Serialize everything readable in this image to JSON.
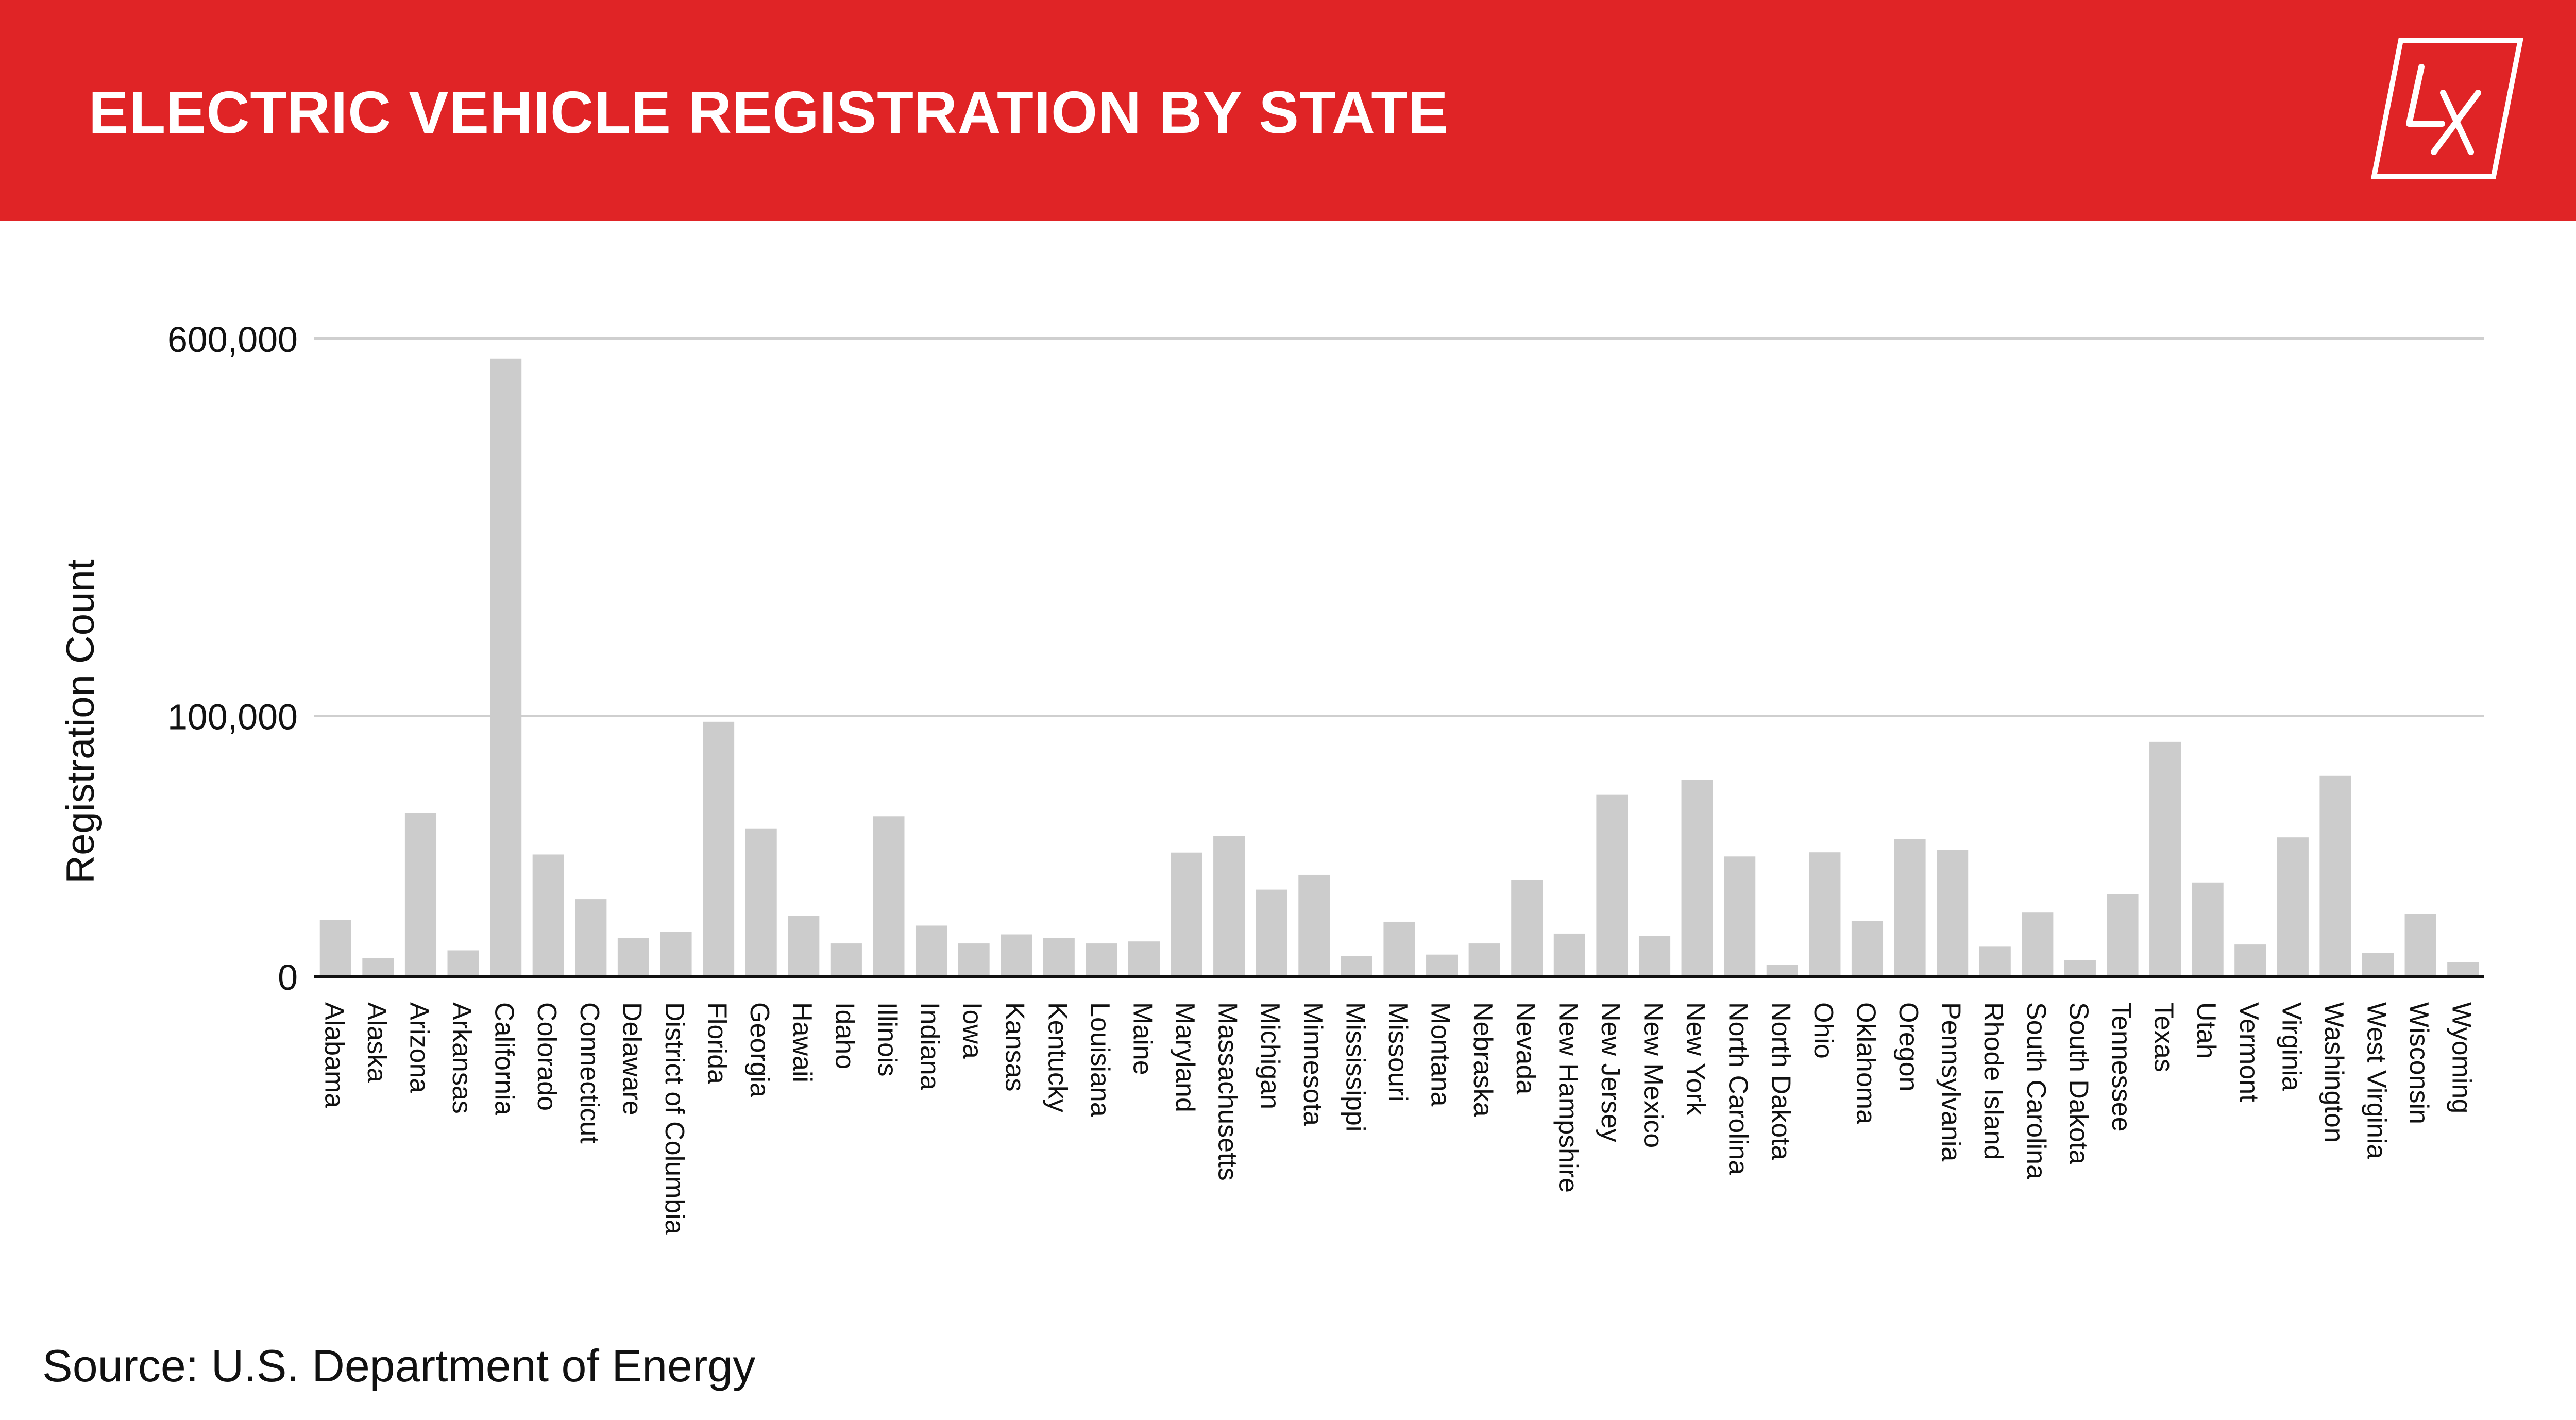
{
  "header": {
    "title": "ELECTRIC VEHICLE REGISTRATION BY STATE",
    "logo_text": "LX",
    "background_color": "#e02426"
  },
  "source": "Source: U.S. Department of Energy",
  "chart_data": {
    "type": "bar",
    "title": "",
    "xlabel": "",
    "ylabel": "Registration Count",
    "y_scale": "sqrt",
    "ylim": [
      0,
      600000
    ],
    "yticks": [
      0,
      100000,
      600000
    ],
    "ytick_labels": [
      "0",
      "100,000",
      "600,000"
    ],
    "grid": true,
    "bar_color": "#cccccc",
    "categories": [
      "Alabama",
      "Alaska",
      "Arizona",
      "Arkansas",
      "California",
      "Colorado",
      "Connecticut",
      "Delaware",
      "District of Columbia",
      "Florida",
      "Georgia",
      "Hawaii",
      "Idaho",
      "Illinois",
      "Indiana",
      "Iowa",
      "Kansas",
      "Kentucky",
      "Louisiana",
      "Maine",
      "Maryland",
      "Massachusetts",
      "Michigan",
      "Minnesota",
      "Mississippi",
      "Missouri",
      "Montana",
      "Nebraska",
      "Nevada",
      "New Hampshire",
      "New Jersey",
      "New Mexico",
      "New York",
      "North Carolina",
      "North Dakota",
      "Ohio",
      "Oklahoma",
      "Oregon",
      "Pennsylvania",
      "Rhode Island",
      "South Carolina",
      "South Dakota",
      "Tennessee",
      "Texas",
      "Utah",
      "Vermont",
      "Virginia",
      "Washington",
      "West Virginia",
      "Wisconsin",
      "Wyoming"
    ],
    "values": [
      4700,
      500,
      39500,
      1000,
      563000,
      21900,
      8800,
      2200,
      2900,
      95600,
      32300,
      5400,
      1600,
      37800,
      3800,
      1600,
      2600,
      2200,
      1600,
      1800,
      22600,
      29000,
      11100,
      15200,
      600,
      4400,
      700,
      1600,
      13800,
      2700,
      48600,
      2400,
      56900,
      21200,
      200,
      22700,
      4500,
      27800,
      23600,
      1300,
      6000,
      400,
      9900,
      81100,
      13000,
      1500,
      28500,
      59300,
      800,
      5800,
      300
    ]
  }
}
